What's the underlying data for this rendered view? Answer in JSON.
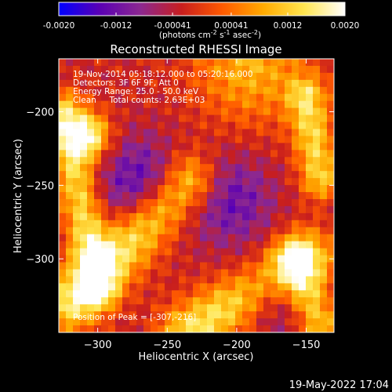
{
  "colorbar": {
    "tick_labels": [
      "-0.0020",
      "-0.0012",
      "-0.00041",
      "0.00041",
      "0.0012",
      "0.0020"
    ],
    "unit_parts": [
      "(photons cm",
      "-2",
      " s",
      "-1",
      " asec",
      "-2",
      ")"
    ],
    "min": -0.002,
    "max": 0.002
  },
  "title": "Reconstructed RHESSI Image",
  "info_lines": [
    "19-Nov-2014 05:18:12.000 to 05:20:16.000",
    "Detectors: 3F 6F 9F, Att 0",
    "Energy Range: 25.0 - 50.0 keV",
    "Clean     Total counts: 2.63E+03"
  ],
  "peak_label": "Position of Peak = [-307,-216]",
  "footer_timestamp": "19-May-2022 17:04",
  "colors": {
    "background": "#000000",
    "text": "#ffffff",
    "colormap_stops": [
      "#0000ff",
      "#5a00b4",
      "#8c2890",
      "#c81e1e",
      "#ff5a00",
      "#ffaa00",
      "#ffe650",
      "#ffffff"
    ]
  },
  "chart_data": {
    "type": "heatmap",
    "title": "Reconstructed RHESSI Image",
    "xlabel": "Heliocentric X (arcsec)",
    "ylabel": "Heliocentric Y (arcsec)",
    "xlim": [
      -328,
      -130
    ],
    "ylim": [
      -350,
      -164
    ],
    "x_ticks": [
      -300,
      -250,
      -200,
      -150
    ],
    "y_ticks": [
      -200,
      -250,
      -300
    ],
    "value_range": [
      -0.002,
      0.002
    ],
    "peak_position": [
      -307,
      -216
    ],
    "features": [
      {
        "kind": "ridge",
        "from": [
          -320,
          -330
        ],
        "to": [
          -235,
          -248
        ],
        "width": 14,
        "amplitude": 0.0018
      },
      {
        "kind": "ridge",
        "from": [
          -325,
          -200
        ],
        "to": [
          -300,
          -320
        ],
        "width": 10,
        "amplitude": 0.0016
      },
      {
        "kind": "ridge",
        "from": [
          -235,
          -350
        ],
        "to": [
          -150,
          -300
        ],
        "width": 14,
        "amplitude": 0.0017
      },
      {
        "kind": "ridge",
        "from": [
          -150,
          -190
        ],
        "to": [
          -140,
          -245
        ],
        "width": 10,
        "amplitude": 0.0015
      },
      {
        "kind": "ridge",
        "from": [
          -160,
          -300
        ],
        "to": [
          -140,
          -345
        ],
        "width": 10,
        "amplitude": 0.0014
      },
      {
        "kind": "blob",
        "center": [
          -190,
          -168
        ],
        "width": 28,
        "amplitude": 0.0012
      },
      {
        "kind": "blob",
        "center": [
          -307,
          -216
        ],
        "width": 11,
        "amplitude": 0.002
      },
      {
        "kind": "blob",
        "center": [
          -268,
          -250
        ],
        "width": 22,
        "amplitude": -0.0012
      },
      {
        "kind": "blob",
        "center": [
          -205,
          -260
        ],
        "width": 22,
        "amplitude": -0.001
      },
      {
        "kind": "blob",
        "center": [
          -175,
          -325
        ],
        "width": 18,
        "amplitude": -0.0009
      }
    ]
  }
}
